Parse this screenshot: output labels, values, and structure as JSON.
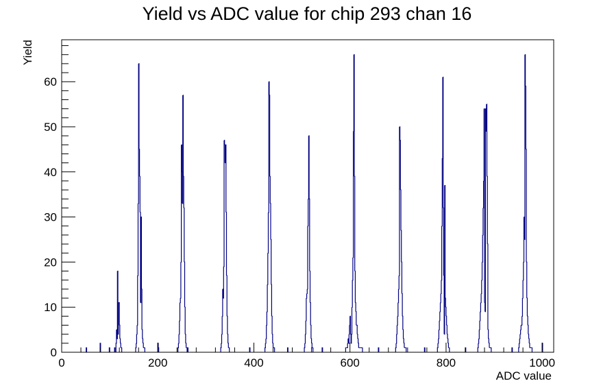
{
  "chart_data": {
    "type": "bar",
    "title": "Yield vs ADC value for chip 293 chan 16",
    "xlabel": "ADC value",
    "ylabel": "Yield",
    "xlim": [
      0,
      1024
    ],
    "ylim": [
      0,
      69.3
    ],
    "x_ticks": [
      0,
      200,
      400,
      600,
      800,
      1000
    ],
    "y_ticks": [
      0,
      10,
      20,
      30,
      40,
      50,
      60
    ],
    "grid": false,
    "line_color": "#000080",
    "bin_width": 1,
    "x": [
      51,
      80,
      99,
      110,
      113,
      114,
      115,
      116,
      117,
      118,
      119,
      120,
      121,
      122,
      123,
      124,
      154,
      155,
      156,
      157,
      158,
      159,
      160,
      161,
      162,
      163,
      164,
      165,
      166,
      167,
      168,
      169,
      170,
      171,
      172,
      200,
      201,
      242,
      243,
      244,
      245,
      246,
      247,
      248,
      249,
      250,
      251,
      252,
      253,
      254,
      255,
      256,
      257,
      258,
      259,
      260,
      262,
      331,
      332,
      333,
      334,
      335,
      336,
      337,
      338,
      339,
      340,
      341,
      342,
      343,
      344,
      345,
      346,
      347,
      348,
      391,
      423,
      424,
      425,
      426,
      427,
      428,
      429,
      430,
      431,
      432,
      433,
      434,
      435,
      436,
      437,
      438,
      439,
      440,
      441,
      442,
      470,
      505,
      506,
      507,
      508,
      509,
      510,
      511,
      512,
      513,
      514,
      515,
      516,
      517,
      518,
      519,
      520,
      521,
      522,
      542,
      591,
      592,
      593,
      594,
      595,
      596,
      597,
      598,
      599,
      600,
      601,
      602,
      603,
      604,
      605,
      606,
      607,
      608,
      609,
      610,
      611,
      612,
      613,
      614,
      615,
      616,
      617,
      618,
      619,
      620,
      621,
      622,
      623,
      624,
      625,
      659,
      695,
      696,
      697,
      698,
      699,
      700,
      701,
      702,
      703,
      704,
      705,
      706,
      707,
      708,
      709,
      710,
      711,
      712,
      713,
      714,
      715,
      716,
      755,
      782,
      783,
      784,
      785,
      786,
      787,
      788,
      789,
      790,
      791,
      792,
      793,
      794,
      795,
      796,
      797,
      798,
      799,
      800,
      801,
      802,
      803,
      804,
      805,
      806,
      840,
      866,
      867,
      868,
      869,
      870,
      871,
      872,
      873,
      874,
      875,
      876,
      877,
      878,
      879,
      880,
      881,
      882,
      883,
      884,
      885,
      886,
      887,
      888,
      889,
      890,
      891,
      892,
      893,
      937,
      951,
      952,
      953,
      954,
      955,
      956,
      957,
      958,
      959,
      960,
      961,
      962,
      963,
      964,
      965,
      966,
      967,
      968,
      969,
      970,
      971,
      972,
      973,
      974,
      975,
      976,
      977,
      978,
      1000
    ],
    "values": [
      1,
      2,
      1,
      1,
      2,
      5,
      3,
      18,
      4,
      11,
      11,
      6,
      3,
      2,
      1,
      1,
      1,
      2,
      4,
      6,
      17,
      33,
      64,
      45,
      39,
      31,
      11,
      30,
      14,
      5,
      3,
      2,
      1,
      1,
      1,
      2,
      1,
      1,
      2,
      4,
      7,
      11,
      12,
      20,
      46,
      40,
      33,
      57,
      39,
      32,
      20,
      10,
      4,
      2,
      1,
      1,
      1,
      1,
      2,
      4,
      8,
      14,
      12,
      19,
      47,
      46,
      42,
      46,
      31,
      17,
      8,
      4,
      2,
      1,
      1,
      1,
      1,
      2,
      3,
      6,
      9,
      15,
      22,
      31,
      60,
      57,
      39,
      33,
      25,
      15,
      8,
      4,
      2,
      1,
      1,
      1,
      1,
      1,
      2,
      4,
      7,
      12,
      13,
      14,
      28,
      34,
      48,
      34,
      18,
      11,
      6,
      3,
      2,
      1,
      1,
      1,
      1,
      1,
      1,
      1,
      2,
      3,
      2,
      4,
      6,
      8,
      4,
      2,
      4,
      10,
      16,
      21,
      49,
      66,
      39,
      18,
      11,
      9,
      6,
      6,
      4,
      3,
      2,
      1,
      1,
      1,
      1,
      1,
      1,
      1,
      1,
      1,
      1,
      2,
      4,
      6,
      8,
      11,
      14,
      17,
      50,
      47,
      36,
      27,
      20,
      13,
      8,
      5,
      3,
      2,
      1,
      1,
      1,
      1,
      1,
      1,
      2,
      3,
      5,
      7,
      9,
      11,
      13,
      16,
      28,
      43,
      61,
      32,
      17,
      4,
      37,
      12,
      10,
      8,
      6,
      4,
      3,
      2,
      1,
      1,
      1,
      1,
      2,
      3,
      5,
      7,
      9,
      11,
      13,
      16,
      20,
      26,
      32,
      38,
      54,
      11,
      9,
      54,
      49,
      55,
      39,
      24,
      5,
      3,
      2,
      1,
      1,
      1,
      1,
      1,
      1,
      2,
      3,
      4,
      5,
      6,
      6,
      8,
      12,
      16,
      20,
      30,
      25,
      66,
      59,
      45,
      20,
      12,
      8,
      6,
      4,
      3,
      2,
      1,
      1,
      1,
      1,
      1,
      2
    ]
  }
}
